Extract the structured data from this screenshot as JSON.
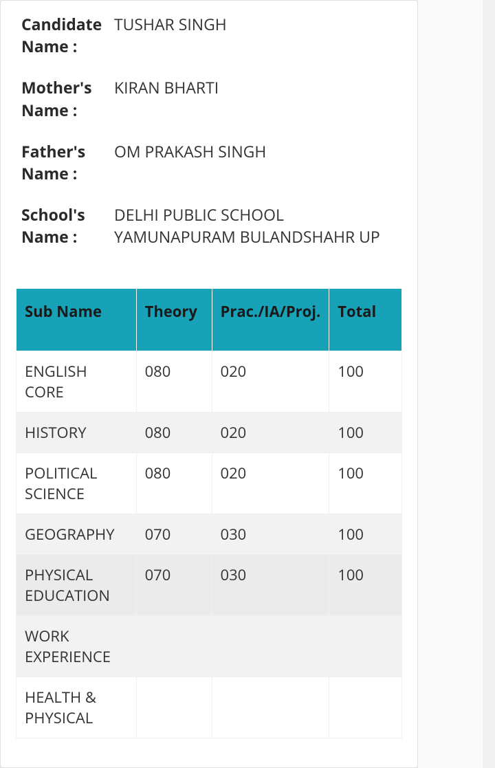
{
  "info": {
    "candidateNameLabel": "Candidate Name :",
    "candidateNameValue": "TUSHAR SINGH",
    "motherNameLabel": "Mother's Name :",
    "motherNameValue": "KIRAN BHARTI",
    "fatherNameLabel": "Father's Name :",
    "fatherNameValue": "OM PRAKASH SINGH",
    "schoolNameLabel": "School's Name :",
    "schoolNameValue": "DELHI PUBLIC SCHOOL YAMUNAPURAM BULANDSHAHR UP"
  },
  "table": {
    "headers": {
      "subName": "Sub Name",
      "theory": "Theory",
      "prac": "Prac./IA/Proj.",
      "total": "Total"
    },
    "rows": [
      {
        "subName": "ENGLISH CORE",
        "theory": "080",
        "prac": "020",
        "total": "100"
      },
      {
        "subName": "HISTORY",
        "theory": "080",
        "prac": "020",
        "total": "100"
      },
      {
        "subName": "POLITICAL SCIENCE",
        "theory": "080",
        "prac": "020",
        "total": "100"
      },
      {
        "subName": "GEOGRAPHY",
        "theory": "070",
        "prac": "030",
        "total": "100"
      },
      {
        "subName": "PHYSICAL EDUCATION",
        "theory": "070",
        "prac": "030",
        "total": "100"
      },
      {
        "subName": "WORK EXPERIENCE",
        "theory": "",
        "prac": "",
        "total": ""
      },
      {
        "subName": "HEALTH & PHYSICAL",
        "theory": "",
        "prac": "",
        "total": ""
      }
    ]
  },
  "colors": {
    "headerBg": "#17a2b8",
    "altRowBg": "#f2f2f2",
    "cardBg": "#ffffff",
    "pageBg": "#f0f0f0",
    "textColor": "#333333",
    "labelColor": "#2a2a2a"
  }
}
